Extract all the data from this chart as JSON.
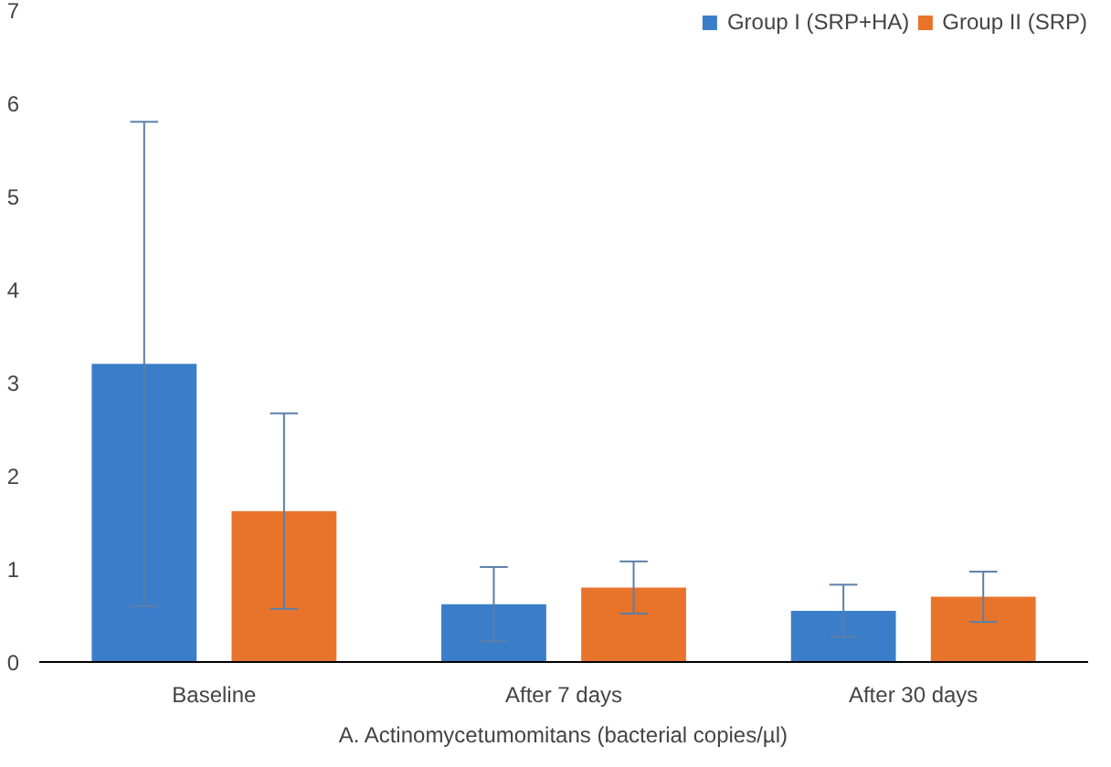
{
  "chart_data": {
    "type": "bar",
    "xlabel": "A. Actinomycetumomitans (bacterial copies/µl)",
    "categories": [
      "Baseline",
      "After 7 days",
      "After 30 days"
    ],
    "series": [
      {
        "name": "Group I (SRP+HA)",
        "color": "#3a7dc9",
        "values": [
          3.2,
          0.62,
          0.55
        ],
        "errors": [
          2.6,
          0.4,
          0.28
        ]
      },
      {
        "name": "Group II (SRP)",
        "color": "#e8742c",
        "values": [
          1.62,
          0.8,
          0.7
        ],
        "errors": [
          1.05,
          0.28,
          0.27
        ]
      }
    ],
    "ylim": [
      0,
      7
    ],
    "yticks": [
      0,
      1,
      2,
      3,
      4,
      5,
      6,
      7
    ],
    "grid": false,
    "legend": "top right"
  }
}
